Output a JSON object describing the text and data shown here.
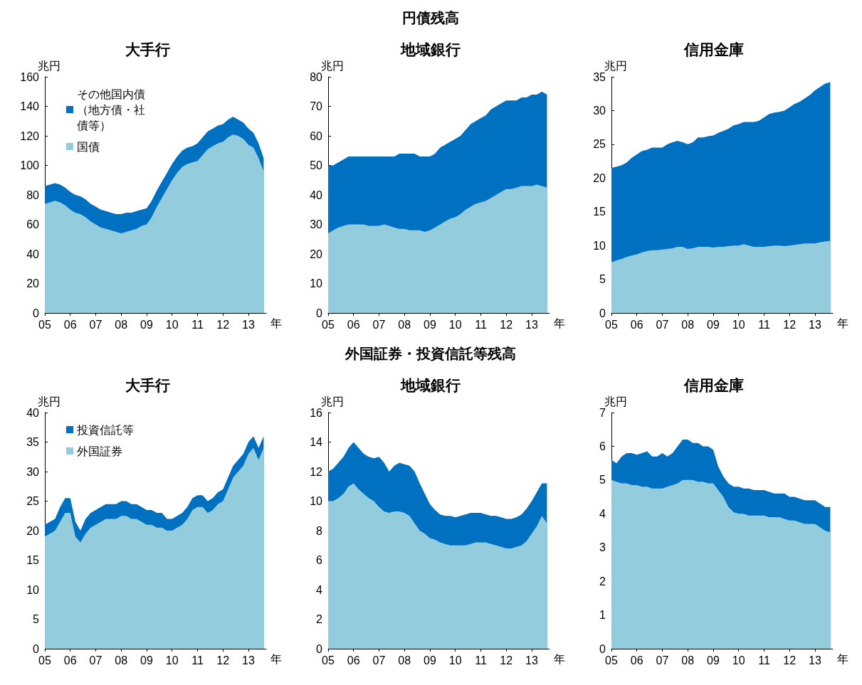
{
  "chart_data": [
    {
      "type": "area",
      "title": "大手行",
      "ylabel": "兆円",
      "xlabel": "年",
      "stacked": true,
      "legend": "top left",
      "xlim": [
        2005,
        2013.7
      ],
      "ylim": [
        0,
        160
      ],
      "yticks": [
        0,
        20,
        40,
        60,
        80,
        100,
        120,
        140,
        160
      ],
      "xticks": [
        {
          "value": 2005,
          "label": "05"
        },
        {
          "value": 2006,
          "label": "06"
        },
        {
          "value": 2007,
          "label": "07"
        },
        {
          "value": 2008,
          "label": "08"
        },
        {
          "value": 2009,
          "label": "09"
        },
        {
          "value": 2010,
          "label": "10"
        },
        {
          "value": 2011,
          "label": "11"
        },
        {
          "value": 2012,
          "label": "12"
        },
        {
          "value": 2013,
          "label": "13"
        }
      ],
      "x": [
        2005,
        2005.2,
        2005.4,
        2005.6,
        2005.8,
        2006,
        2006.2,
        2006.4,
        2006.6,
        2006.8,
        2007,
        2007.2,
        2007.4,
        2007.6,
        2007.8,
        2008,
        2008.2,
        2008.4,
        2008.6,
        2008.8,
        2009,
        2009.2,
        2009.4,
        2009.6,
        2009.8,
        2010,
        2010.2,
        2010.4,
        2010.6,
        2010.8,
        2011,
        2011.2,
        2011.4,
        2011.6,
        2011.8,
        2012,
        2012.2,
        2012.4,
        2012.6,
        2012.8,
        2013,
        2013.2,
        2013.4,
        2013.6
      ],
      "series": [
        {
          "name": "国債",
          "color": "#93cddd",
          "values": [
            74,
            75,
            76,
            75,
            73,
            70,
            68,
            67,
            65,
            62,
            60,
            58,
            57,
            56,
            55,
            54,
            55,
            56,
            57,
            59,
            60,
            65,
            72,
            78,
            84,
            90,
            95,
            99,
            101,
            102,
            103,
            107,
            111,
            113,
            115,
            116,
            119,
            121,
            120,
            118,
            114,
            112,
            105,
            96
          ]
        },
        {
          "name": "その他国内債（地方債・社債等）",
          "color": "#0070c0",
          "values": [
            12,
            12,
            12,
            12,
            12,
            12,
            12,
            12,
            12,
            12,
            12,
            12,
            12,
            12,
            12,
            13,
            13,
            12,
            12,
            11,
            11,
            11,
            11,
            11,
            11,
            11,
            11,
            11,
            11,
            11,
            12,
            12,
            12,
            12,
            12,
            12,
            12,
            12,
            11,
            11,
            11,
            10,
            10,
            9
          ]
        }
      ]
    },
    {
      "type": "area",
      "annotations": [
        "円債残高"
      ],
      "title": "地域銀行",
      "ylabel": "兆円",
      "xlabel": "年",
      "stacked": true,
      "xlim": [
        2005,
        2013.7
      ],
      "ylim": [
        0,
        80
      ],
      "yticks": [
        0,
        10,
        20,
        30,
        40,
        50,
        60,
        70,
        80
      ],
      "xticks": [
        {
          "value": 2005,
          "label": "05"
        },
        {
          "value": 2006,
          "label": "06"
        },
        {
          "value": 2007,
          "label": "07"
        },
        {
          "value": 2008,
          "label": "08"
        },
        {
          "value": 2009,
          "label": "09"
        },
        {
          "value": 2010,
          "label": "10"
        },
        {
          "value": 2011,
          "label": "11"
        },
        {
          "value": 2012,
          "label": "12"
        },
        {
          "value": 2013,
          "label": "13"
        }
      ],
      "x": [
        2005,
        2005.2,
        2005.4,
        2005.6,
        2005.8,
        2006,
        2006.2,
        2006.4,
        2006.6,
        2006.8,
        2007,
        2007.2,
        2007.4,
        2007.6,
        2007.8,
        2008,
        2008.2,
        2008.4,
        2008.6,
        2008.8,
        2009,
        2009.2,
        2009.4,
        2009.6,
        2009.8,
        2010,
        2010.2,
        2010.4,
        2010.6,
        2010.8,
        2011,
        2011.2,
        2011.4,
        2011.6,
        2011.8,
        2012,
        2012.2,
        2012.4,
        2012.6,
        2012.8,
        2013,
        2013.2,
        2013.4,
        2013.6
      ],
      "series": [
        {
          "color": "#93cddd",
          "values": [
            27,
            28,
            29,
            29.5,
            30,
            30,
            30,
            30,
            29.5,
            29.5,
            29.5,
            30,
            29.5,
            29,
            28.5,
            28.5,
            28,
            28,
            28,
            27.5,
            28,
            29,
            30,
            31,
            32,
            32.5,
            33.5,
            35,
            36,
            37,
            37.5,
            38,
            39,
            40,
            41,
            42,
            42,
            42.5,
            43,
            43,
            43,
            43.5,
            43,
            42.5
          ]
        },
        {
          "color": "#0070c0",
          "values": [
            23,
            22,
            22,
            22.5,
            23,
            23,
            23,
            23,
            23.5,
            23.5,
            23.5,
            23,
            23.5,
            24,
            25.5,
            25.5,
            26,
            26,
            25,
            25.5,
            25,
            25,
            26,
            26,
            26,
            26.5,
            26.5,
            27,
            28,
            28,
            28.5,
            29,
            30,
            30,
            30,
            30,
            30,
            29.5,
            30,
            30,
            31,
            30.5,
            32,
            31.5
          ]
        }
      ]
    },
    {
      "type": "area",
      "title": "信用金庫",
      "ylabel": "兆円",
      "xlabel": "年",
      "stacked": true,
      "xlim": [
        2005,
        2013.7
      ],
      "ylim": [
        0,
        35
      ],
      "yticks": [
        0,
        5,
        10,
        15,
        20,
        25,
        30,
        35
      ],
      "xticks": [
        {
          "value": 2005,
          "label": "05"
        },
        {
          "value": 2006,
          "label": "06"
        },
        {
          "value": 2007,
          "label": "07"
        },
        {
          "value": 2008,
          "label": "08"
        },
        {
          "value": 2009,
          "label": "09"
        },
        {
          "value": 2010,
          "label": "10"
        },
        {
          "value": 2011,
          "label": "11"
        },
        {
          "value": 2012,
          "label": "12"
        },
        {
          "value": 2013,
          "label": "13"
        }
      ],
      "x": [
        2005,
        2005.2,
        2005.4,
        2005.6,
        2005.8,
        2006,
        2006.2,
        2006.4,
        2006.6,
        2006.8,
        2007,
        2007.2,
        2007.4,
        2007.6,
        2007.8,
        2008,
        2008.2,
        2008.4,
        2008.6,
        2008.8,
        2009,
        2009.2,
        2009.4,
        2009.6,
        2009.8,
        2010,
        2010.2,
        2010.4,
        2010.6,
        2010.8,
        2011,
        2011.2,
        2011.4,
        2011.6,
        2011.8,
        2012,
        2012.2,
        2012.4,
        2012.6,
        2012.8,
        2013,
        2013.2,
        2013.4,
        2013.6
      ],
      "series": [
        {
          "color": "#93cddd",
          "values": [
            7.5,
            7.8,
            8,
            8.3,
            8.5,
            8.7,
            9,
            9.2,
            9.3,
            9.3,
            9.4,
            9.5,
            9.6,
            9.8,
            9.8,
            9.5,
            9.6,
            9.8,
            9.8,
            9.8,
            9.7,
            9.8,
            9.8,
            9.9,
            10,
            10,
            10.2,
            10,
            9.8,
            9.8,
            9.8,
            9.9,
            10,
            10,
            9.9,
            10,
            10.1,
            10.2,
            10.3,
            10.3,
            10.3,
            10.5,
            10.6,
            10.7
          ]
        },
        {
          "color": "#0070c0",
          "values": [
            14,
            13.9,
            13.9,
            14,
            14.5,
            14.8,
            15,
            15,
            15.2,
            15.2,
            15.1,
            15.5,
            15.7,
            15.7,
            15.5,
            15.5,
            15.7,
            16.2,
            16.2,
            16.4,
            16.6,
            16.9,
            17.2,
            17.4,
            17.8,
            18,
            18.1,
            18.3,
            18.5,
            18.7,
            19.2,
            19.6,
            19.7,
            19.8,
            20.1,
            20.5,
            20.9,
            21.1,
            21.5,
            22,
            22.7,
            23,
            23.4,
            23.5
          ]
        }
      ]
    },
    {
      "type": "area",
      "title": "大手行",
      "ylabel": "兆円",
      "xlabel": "年",
      "stacked": true,
      "legend": "top left",
      "xlim": [
        2005,
        2013.7
      ],
      "ylim": [
        0,
        40
      ],
      "yticks": [
        0,
        5,
        10,
        15,
        20,
        25,
        30,
        35,
        40
      ],
      "xticks": [
        {
          "value": 2005,
          "label": "05"
        },
        {
          "value": 2006,
          "label": "06"
        },
        {
          "value": 2007,
          "label": "07"
        },
        {
          "value": 2008,
          "label": "08"
        },
        {
          "value": 2009,
          "label": "09"
        },
        {
          "value": 2010,
          "label": "10"
        },
        {
          "value": 2011,
          "label": "11"
        },
        {
          "value": 2012,
          "label": "12"
        },
        {
          "value": 2013,
          "label": "13"
        }
      ],
      "x": [
        2005,
        2005.2,
        2005.4,
        2005.6,
        2005.8,
        2006,
        2006.2,
        2006.4,
        2006.6,
        2006.8,
        2007,
        2007.2,
        2007.4,
        2007.6,
        2007.8,
        2008,
        2008.2,
        2008.4,
        2008.6,
        2008.8,
        2009,
        2009.2,
        2009.4,
        2009.6,
        2009.8,
        2010,
        2010.2,
        2010.4,
        2010.6,
        2010.8,
        2011,
        2011.2,
        2011.4,
        2011.6,
        2011.8,
        2012,
        2012.2,
        2012.4,
        2012.6,
        2012.8,
        2013,
        2013.2,
        2013.4,
        2013.6
      ],
      "series": [
        {
          "name": "外国証券",
          "color": "#93cddd",
          "values": [
            19,
            19.5,
            20,
            21.5,
            23,
            23,
            19,
            18,
            19.5,
            20.5,
            21,
            21.5,
            22,
            22,
            22,
            22.5,
            22.5,
            22,
            22,
            21.5,
            21,
            21,
            20.5,
            20.5,
            20,
            20,
            20.5,
            21,
            22,
            23.5,
            24,
            24,
            23,
            23.5,
            24.5,
            25,
            27,
            29,
            30,
            31,
            33,
            34,
            32,
            34
          ]
        },
        {
          "name": "投資信託等",
          "color": "#0070c0",
          "values": [
            2,
            2,
            2,
            2.5,
            2.5,
            2.5,
            2.5,
            2,
            2.5,
            2.5,
            2.5,
            2.5,
            2.5,
            2.5,
            2.5,
            2.5,
            2.5,
            2.5,
            2.5,
            2.5,
            2.5,
            2.5,
            2.5,
            2.5,
            2,
            2,
            2,
            2,
            2,
            2,
            2,
            2,
            2,
            2,
            2,
            2,
            2,
            2,
            2,
            2,
            2,
            2,
            2,
            2
          ]
        }
      ]
    },
    {
      "type": "area",
      "annotations": [
        "外国証券・投資信託等残高"
      ],
      "title": "地域銀行",
      "ylabel": "兆円",
      "xlabel": "年",
      "stacked": true,
      "xlim": [
        2005,
        2013.7
      ],
      "ylim": [
        0,
        16
      ],
      "yticks": [
        0,
        2,
        4,
        6,
        8,
        10,
        12,
        14,
        16
      ],
      "xticks": [
        {
          "value": 2005,
          "label": "05"
        },
        {
          "value": 2006,
          "label": "06"
        },
        {
          "value": 2007,
          "label": "07"
        },
        {
          "value": 2008,
          "label": "08"
        },
        {
          "value": 2009,
          "label": "09"
        },
        {
          "value": 2010,
          "label": "10"
        },
        {
          "value": 2011,
          "label": "11"
        },
        {
          "value": 2012,
          "label": "12"
        },
        {
          "value": 2013,
          "label": "13"
        }
      ],
      "x": [
        2005,
        2005.2,
        2005.4,
        2005.6,
        2005.8,
        2006,
        2006.2,
        2006.4,
        2006.6,
        2006.8,
        2007,
        2007.2,
        2007.4,
        2007.6,
        2007.8,
        2008,
        2008.2,
        2008.4,
        2008.6,
        2008.8,
        2009,
        2009.2,
        2009.4,
        2009.6,
        2009.8,
        2010,
        2010.2,
        2010.4,
        2010.6,
        2010.8,
        2011,
        2011.2,
        2011.4,
        2011.6,
        2011.8,
        2012,
        2012.2,
        2012.4,
        2012.6,
        2012.8,
        2013,
        2013.2,
        2013.4,
        2013.6
      ],
      "series": [
        {
          "color": "#93cddd",
          "values": [
            10,
            10,
            10.2,
            10.5,
            11,
            11.2,
            10.8,
            10.5,
            10.2,
            10,
            9.6,
            9.3,
            9.2,
            9.3,
            9.3,
            9.2,
            9,
            8.5,
            8,
            7.8,
            7.5,
            7.4,
            7.2,
            7.1,
            7,
            7,
            7,
            7,
            7.1,
            7.2,
            7.2,
            7.2,
            7.1,
            7,
            6.9,
            6.8,
            6.8,
            6.9,
            7,
            7.3,
            7.8,
            8.3,
            9,
            8.5
          ]
        },
        {
          "color": "#0070c0",
          "values": [
            2,
            2.2,
            2.4,
            2.5,
            2.6,
            2.8,
            2.8,
            2.7,
            2.8,
            2.9,
            3.4,
            3.3,
            2.8,
            3.1,
            3.3,
            3.3,
            3.4,
            3.5,
            3.2,
            2.7,
            2.3,
            2,
            1.9,
            1.9,
            2,
            1.9,
            2,
            2.1,
            2.1,
            2,
            2,
            1.9,
            1.9,
            2,
            2,
            2,
            2,
            2,
            2.1,
            2.2,
            2.2,
            2.3,
            2.2,
            2.7
          ]
        }
      ]
    },
    {
      "type": "area",
      "title": "信用金庫",
      "ylabel": "兆円",
      "xlabel": "年",
      "stacked": true,
      "xlim": [
        2005,
        2013.7
      ],
      "ylim": [
        0,
        7
      ],
      "yticks": [
        0,
        1,
        2,
        3,
        4,
        5,
        6,
        7
      ],
      "xticks": [
        {
          "value": 2005,
          "label": "05"
        },
        {
          "value": 2006,
          "label": "06"
        },
        {
          "value": 2007,
          "label": "07"
        },
        {
          "value": 2008,
          "label": "08"
        },
        {
          "value": 2009,
          "label": "09"
        },
        {
          "value": 2010,
          "label": "10"
        },
        {
          "value": 2011,
          "label": "11"
        },
        {
          "value": 2012,
          "label": "12"
        },
        {
          "value": 2013,
          "label": "13"
        }
      ],
      "x": [
        2005,
        2005.2,
        2005.4,
        2005.6,
        2005.8,
        2006,
        2006.2,
        2006.4,
        2006.6,
        2006.8,
        2007,
        2007.2,
        2007.4,
        2007.6,
        2007.8,
        2008,
        2008.2,
        2008.4,
        2008.6,
        2008.8,
        2009,
        2009.2,
        2009.4,
        2009.6,
        2009.8,
        2010,
        2010.2,
        2010.4,
        2010.6,
        2010.8,
        2011,
        2011.2,
        2011.4,
        2011.6,
        2011.8,
        2012,
        2012.2,
        2012.4,
        2012.6,
        2012.8,
        2013,
        2013.2,
        2013.4,
        2013.6
      ],
      "series": [
        {
          "color": "#93cddd",
          "values": [
            5,
            4.95,
            4.9,
            4.9,
            4.85,
            4.85,
            4.8,
            4.8,
            4.75,
            4.75,
            4.75,
            4.8,
            4.85,
            4.9,
            5,
            5,
            5,
            4.95,
            4.95,
            4.9,
            4.9,
            4.7,
            4.5,
            4.2,
            4.05,
            4,
            4,
            3.95,
            3.95,
            3.95,
            3.95,
            3.9,
            3.9,
            3.9,
            3.85,
            3.8,
            3.8,
            3.75,
            3.7,
            3.7,
            3.7,
            3.6,
            3.5,
            3.45
          ]
        },
        {
          "color": "#0070c0",
          "values": [
            0.6,
            0.55,
            0.8,
            0.9,
            0.95,
            0.9,
            1,
            1.05,
            0.95,
            0.95,
            1.05,
            0.9,
            0.95,
            1.1,
            1.2,
            1.2,
            1.1,
            1.15,
            1.05,
            1.1,
            1,
            0.7,
            0.6,
            0.7,
            0.75,
            0.8,
            0.75,
            0.8,
            0.75,
            0.75,
            0.75,
            0.75,
            0.7,
            0.7,
            0.75,
            0.7,
            0.7,
            0.7,
            0.7,
            0.7,
            0.7,
            0.7,
            0.7,
            0.75
          ]
        }
      ]
    }
  ]
}
